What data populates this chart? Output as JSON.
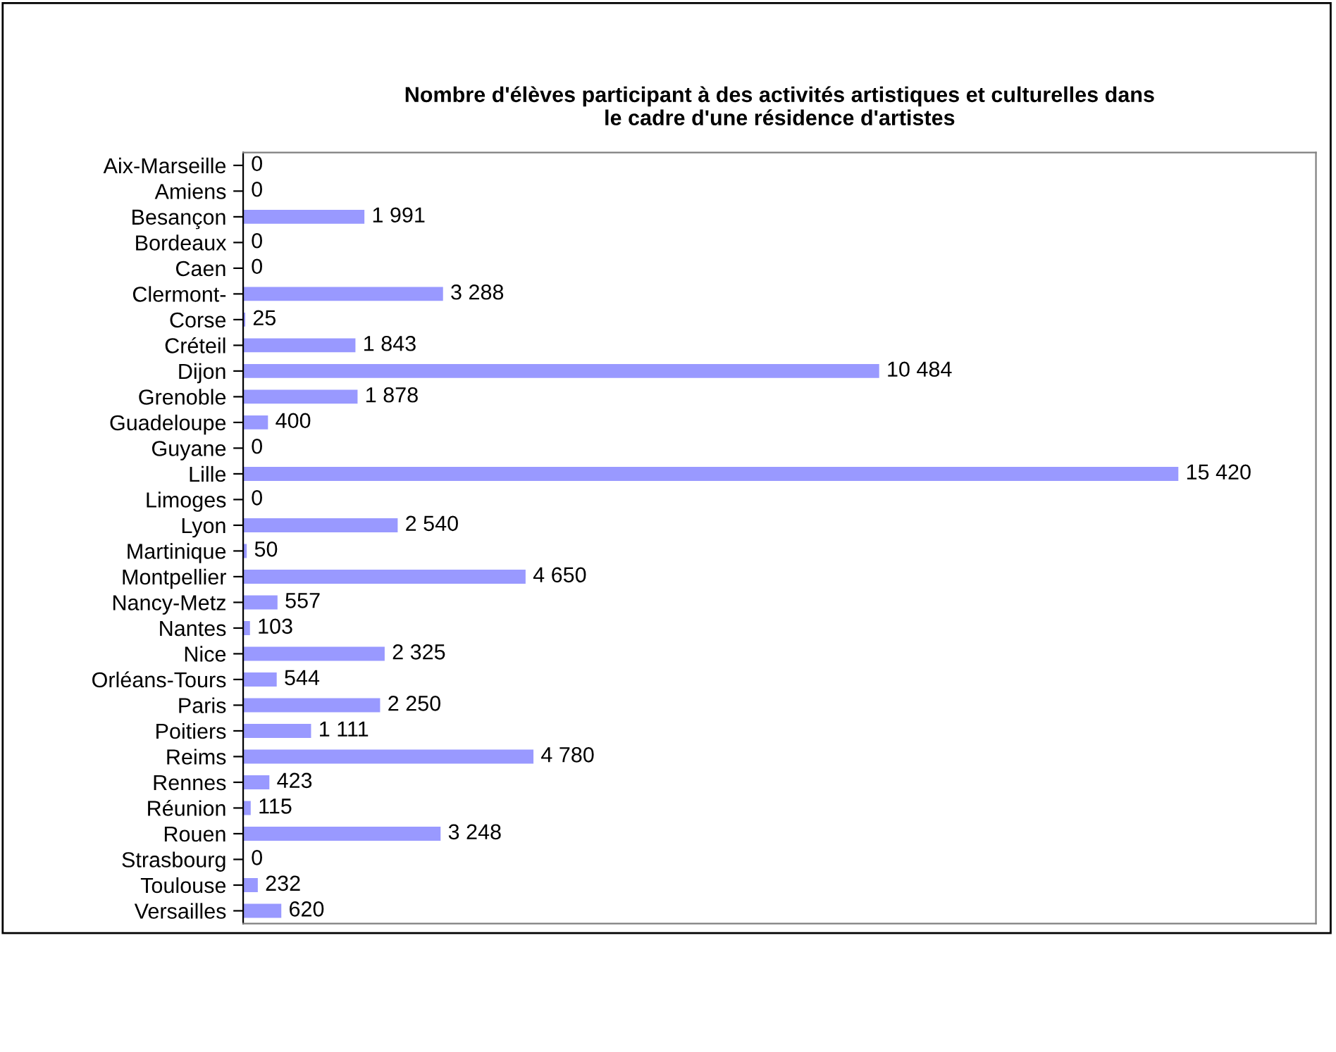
{
  "chart_data": {
    "type": "bar",
    "orientation": "horizontal",
    "title": "Nombre d'élèves participant à des activités artistiques et culturelles dans\nle cadre d'une résidence d'artistes",
    "categories": [
      "Aix-Marseille",
      "Amiens",
      "Besançon",
      "Bordeaux",
      "Caen",
      "Clermont-",
      "Corse",
      "Créteil",
      "Dijon",
      "Grenoble",
      "Guadeloupe",
      "Guyane",
      "Lille",
      "Limoges",
      "Lyon",
      "Martinique",
      "Montpellier",
      "Nancy-Metz",
      "Nantes",
      "Nice",
      "Orléans-Tours",
      "Paris",
      "Poitiers",
      "Reims",
      "Rennes",
      "Réunion",
      "Rouen",
      "Strasbourg",
      "Toulouse",
      "Versailles"
    ],
    "values": [
      0,
      0,
      1991,
      0,
      0,
      3288,
      25,
      1843,
      10484,
      1878,
      400,
      0,
      15420,
      0,
      2540,
      50,
      4650,
      557,
      103,
      2325,
      544,
      2250,
      1111,
      4780,
      423,
      115,
      3248,
      0,
      232,
      620
    ],
    "value_labels": [
      "0",
      "0",
      "1 991",
      "0",
      "0",
      "3 288",
      "25",
      "1 843",
      "10 484",
      "1 878",
      "400",
      "0",
      "15 420",
      "0",
      "2 540",
      "50",
      "4 650",
      "557",
      "103",
      "2 325",
      "544",
      "2 250",
      "1 111",
      "4 780",
      "423",
      "115",
      "3 248",
      "0",
      "232",
      "620"
    ],
    "color": "#9999ff",
    "xlim": [
      0,
      17700
    ],
    "grid": false,
    "legend": false
  }
}
